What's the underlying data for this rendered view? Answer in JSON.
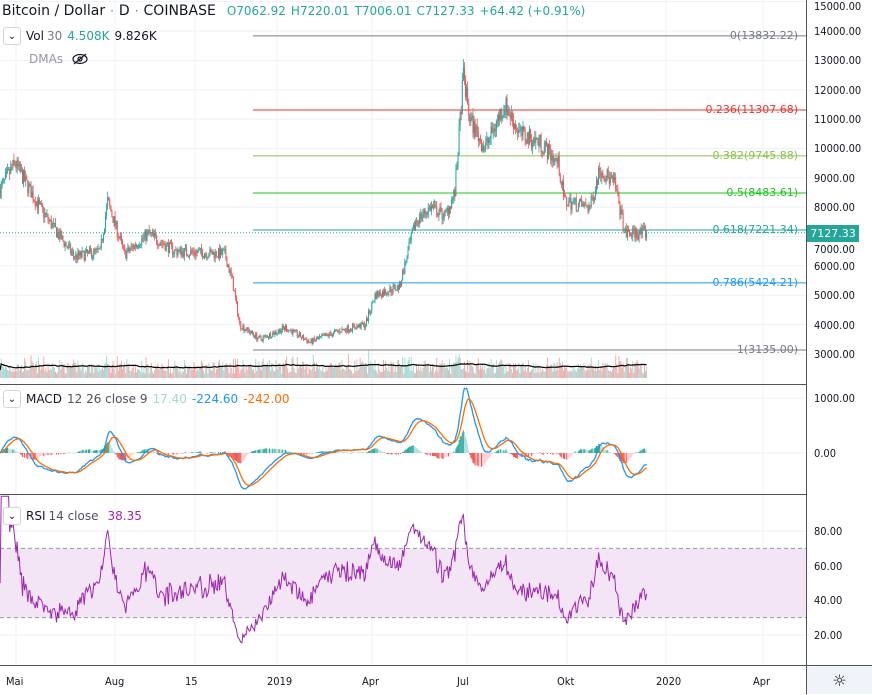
{
  "header": {
    "symbol": "Bitcoin / Dollar",
    "sep1": "·",
    "interval": "D",
    "sep2": "·",
    "exchange": "COINBASE",
    "open": "O7062.92",
    "high": "H7220.01",
    "low": "T7006.01",
    "close": "C7127.33",
    "change": "+64.42 (+0.91%)"
  },
  "volume_legend": {
    "name": "Vol",
    "length": "30",
    "value": "4.508K",
    "ma": "9.826K"
  },
  "dmas_legend": {
    "name": "DMAs",
    "icon": "eye-crossed-icon"
  },
  "macd_legend": {
    "name": "MACD",
    "params": "12 26 close 9",
    "hist": "17.40",
    "macd": "-224.60",
    "signal": "-242.00"
  },
  "rsi_legend": {
    "name": "RSI",
    "params": "14 close",
    "value": "38.35"
  },
  "price_axis": [
    "15000.00",
    "14000.00",
    "13000.00",
    "12000.00",
    "11000.00",
    "10000.00",
    "9000.00",
    "8000.00",
    "7000.00",
    "6000.00",
    "5000.00",
    "4000.00",
    "3000.00"
  ],
  "last_price": "7127.33",
  "macd_axis": [
    "1000.00",
    "0.00"
  ],
  "rsi_axis": [
    "80.00",
    "60.00",
    "40.00",
    "20.00"
  ],
  "time_axis": [
    "Mai",
    "Aug",
    "15",
    "2019",
    "Apr",
    "Jul",
    "Okt",
    "2020",
    "Apr"
  ],
  "fib_levels": [
    {
      "label": "0(13832.22)",
      "price": 13832.22,
      "color": "#787b86"
    },
    {
      "label": "0.236(11307.68)",
      "price": 11307.68,
      "color": "#e53935"
    },
    {
      "label": "0.382(9745.88)",
      "price": 9745.88,
      "color": "#8bc34a"
    },
    {
      "label": "0.5(8483.61)",
      "price": 8483.61,
      "color": "#1ec51e"
    },
    {
      "label": "0.618(7221.34)",
      "price": 7221.34,
      "color": "#26a69a"
    },
    {
      "label": "0.786(5424.21)",
      "price": 5424.21,
      "color": "#2196f3"
    },
    {
      "label": "1(3135.00)",
      "price": 3135.0,
      "color": "#787b86"
    }
  ],
  "colors": {
    "up": "#26a69a",
    "down": "#ef5350",
    "macd": "#2196f3",
    "signal": "#ff6d00",
    "rsi": "#9c27b0",
    "rsi_band": "#f3e5f5"
  },
  "chart_data": {
    "type": "candlestick",
    "price_path": [
      [
        "2018-04-16",
        8600
      ],
      [
        "2018-04-30",
        9500
      ],
      [
        "2018-05-23",
        8000
      ],
      [
        "2018-06-11",
        7000
      ],
      [
        "2018-06-25",
        6300
      ],
      [
        "2018-07-19",
        6500
      ],
      [
        "2018-07-26",
        8200
      ],
      [
        "2018-08-11",
        6400
      ],
      [
        "2018-09-02",
        7100
      ],
      [
        "2018-09-27",
        6500
      ],
      [
        "2018-11-13",
        6400
      ],
      [
        "2018-11-20",
        5500
      ],
      [
        "2018-11-27",
        4000
      ],
      [
        "2018-12-16",
        3500
      ],
      [
        "2019-01-09",
        3900
      ],
      [
        "2019-02-01",
        3400
      ],
      [
        "2019-03-01",
        3800
      ],
      [
        "2019-03-25",
        4000
      ],
      [
        "2019-04-03",
        5000
      ],
      [
        "2019-04-26",
        5300
      ],
      [
        "2019-05-11",
        7500
      ],
      [
        "2019-05-25",
        8000
      ],
      [
        "2019-06-08",
        7700
      ],
      [
        "2019-06-17",
        8500
      ],
      [
        "2019-06-25",
        12500
      ],
      [
        "2019-07-01",
        11000
      ],
      [
        "2019-07-15",
        10000
      ],
      [
        "2019-08-03",
        11500
      ],
      [
        "2019-08-17",
        10500
      ],
      [
        "2019-09-05",
        10200
      ],
      [
        "2019-09-22",
        9500
      ],
      [
        "2019-09-28",
        8200
      ],
      [
        "2019-10-22",
        8000
      ],
      [
        "2019-10-31",
        9300
      ],
      [
        "2019-11-14",
        8800
      ],
      [
        "2019-11-24",
        7100
      ],
      [
        "2019-12-14",
        7127.33
      ]
    ],
    "price_range": [
      2300,
      15000
    ]
  }
}
